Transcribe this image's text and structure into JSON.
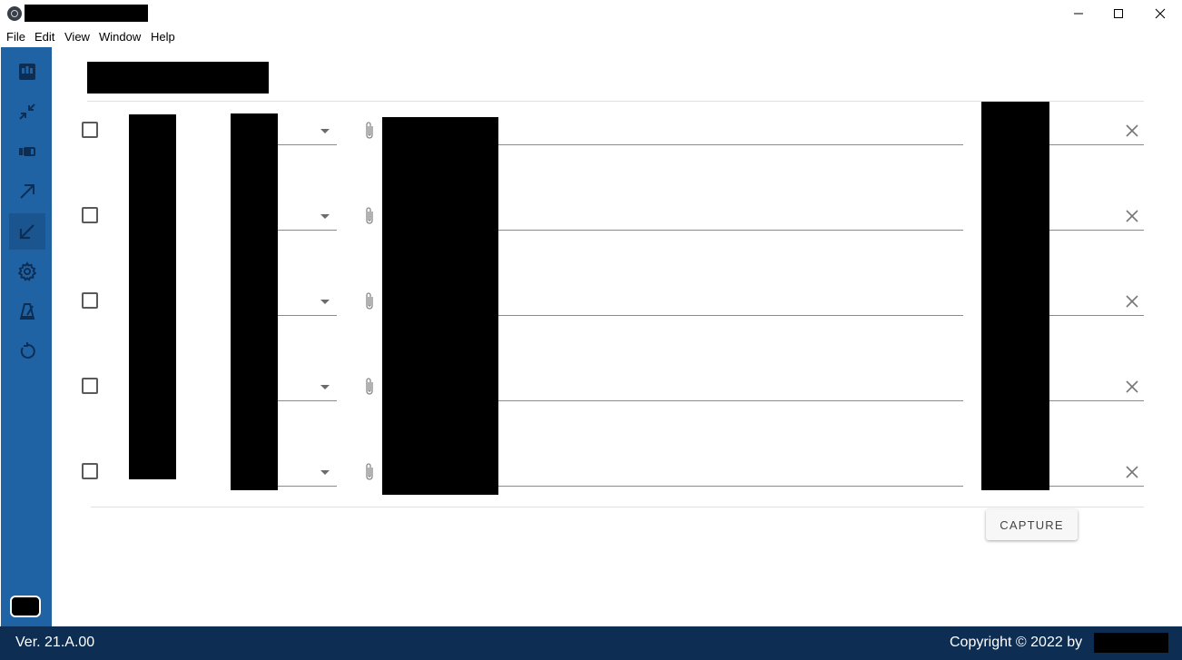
{
  "window": {
    "menu": [
      "File",
      "Edit",
      "View",
      "Window",
      "Help"
    ],
    "controls": {
      "minimize": "minimize-icon",
      "maximize": "maximize-icon",
      "close": "close-icon"
    }
  },
  "sidebar": {
    "items": [
      {
        "icon": "dashboard-icon"
      },
      {
        "icon": "collapse-icon"
      },
      {
        "icon": "device-icon"
      },
      {
        "icon": "arrow-up-right-icon"
      },
      {
        "icon": "arrow-down-left-icon",
        "active": true
      },
      {
        "icon": "settings-icon"
      },
      {
        "icon": "metronome-icon"
      },
      {
        "icon": "restore-icon"
      }
    ]
  },
  "rows": [
    {
      "checked": false
    },
    {
      "checked": false
    },
    {
      "checked": false
    },
    {
      "checked": false
    },
    {
      "checked": false
    }
  ],
  "actions": {
    "capture_label": "CAPTURE"
  },
  "status": {
    "version": "Ver. 21.A.00",
    "copyright": "Copyright © 2022 by"
  },
  "colors": {
    "sidebar_bg": "#2063a5",
    "sidebar_active": "#1a558f",
    "statusbar_bg": "#0d2d52"
  }
}
